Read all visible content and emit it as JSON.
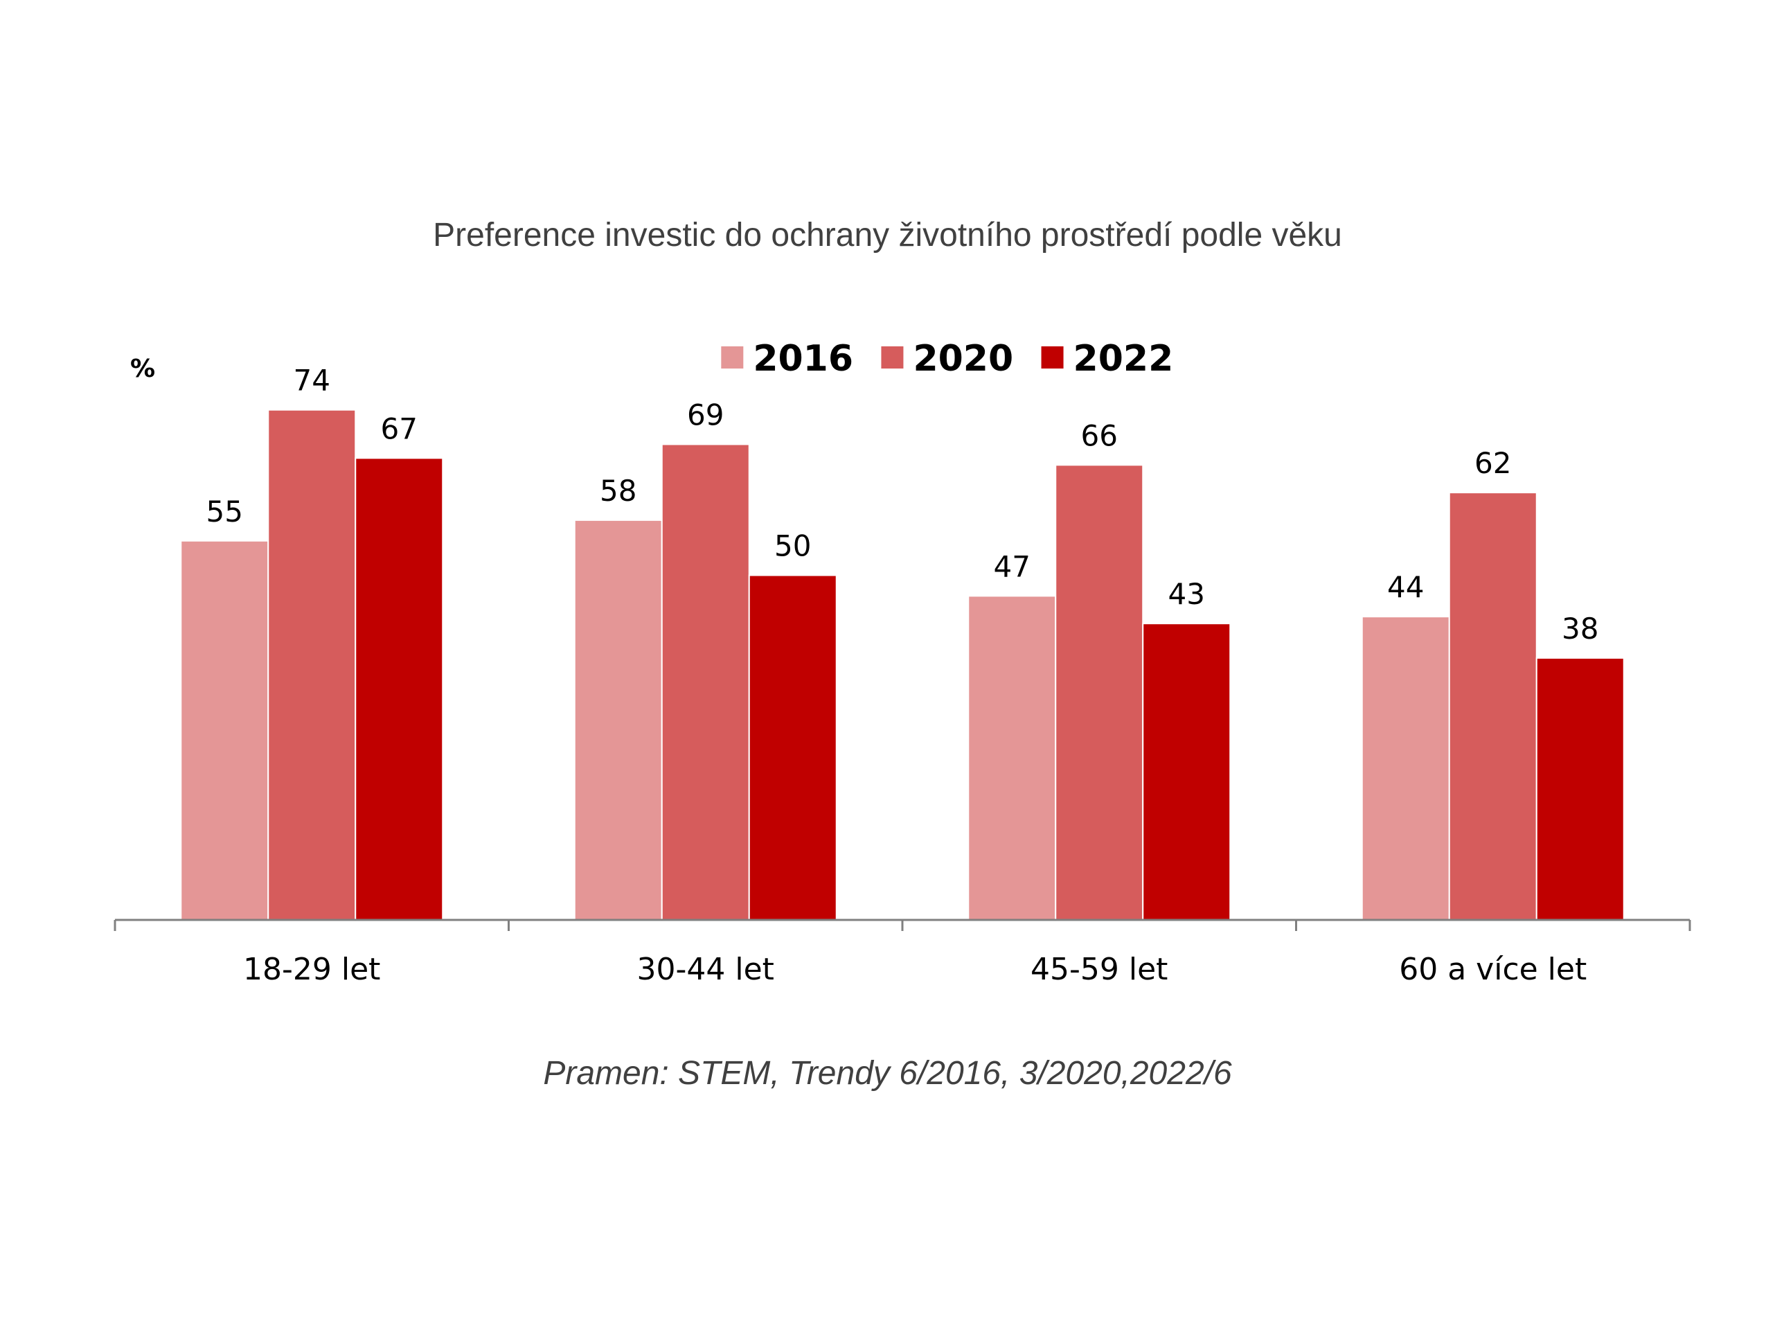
{
  "chart_data": {
    "type": "bar",
    "title": "Preference investic do ochrany životního prostředí podle věku",
    "ylabel": "%",
    "xlabel": "",
    "categories": [
      "18-29 let",
      "30-44 let",
      "45-59 let",
      "60 a více let"
    ],
    "series": [
      {
        "name": "2016",
        "values": [
          55,
          58,
          47,
          44
        ],
        "color": "#E49696"
      },
      {
        "name": "2020",
        "values": [
          74,
          69,
          66,
          62
        ],
        "color": "#D65C5C"
      },
      {
        "name": "2022",
        "values": [
          67,
          50,
          43,
          38
        ],
        "color": "#C00000"
      }
    ],
    "ylim": [
      0,
      100
    ],
    "grid": false,
    "legend_position": "top-center",
    "data_labels": true,
    "source": "Pramen: STEM, Trendy 6/2016, 3/2020,2022/6"
  }
}
